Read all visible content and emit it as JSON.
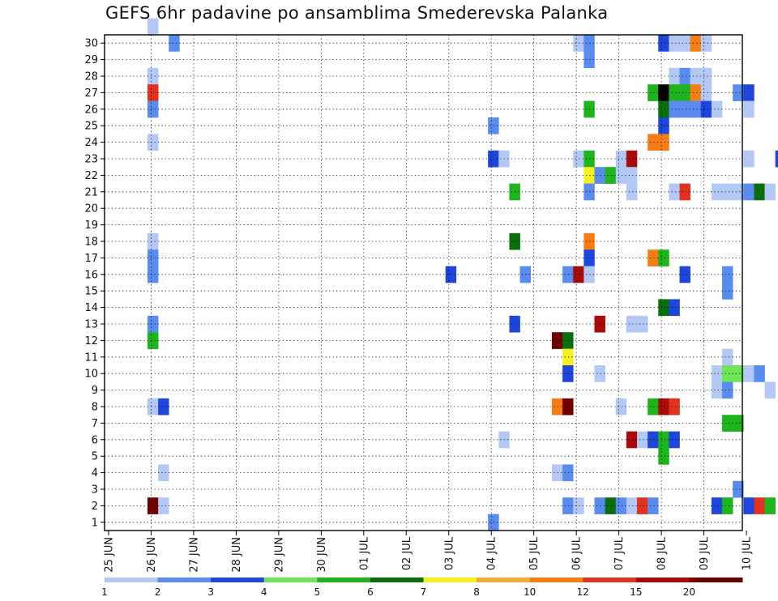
{
  "chart_data": {
    "type": "heatmap",
    "title": "GEFS 6hr padavine po ansamblima Smederevska Palanka",
    "x_tick_labels": [
      "25 JUN",
      "26 JUN",
      "27 JUN",
      "28 JUN",
      "29 JUN",
      "30 JUN",
      "01 JUL",
      "02 JUL",
      "03 JUL",
      "04 JUL",
      "05 JUL",
      "06 JUL",
      "07 JUL",
      "08 JUL",
      "09 JUL",
      "10 JUL"
    ],
    "y_tick_labels": [
      "1",
      "2",
      "3",
      "4",
      "5",
      "6",
      "7",
      "8",
      "9",
      "10",
      "11",
      "12",
      "13",
      "14",
      "15",
      "16",
      "17",
      "18",
      "19",
      "20",
      "21",
      "22",
      "23",
      "24",
      "25",
      "26",
      "27",
      "28",
      "29",
      "30"
    ],
    "x_step_hours": 6,
    "grid": true,
    "legend": {
      "position": "bottom",
      "labels": [
        "1",
        "2",
        "3",
        "4",
        "5",
        "6",
        "7",
        "8",
        "10",
        "12",
        "15",
        "20"
      ],
      "colors": [
        "#b4c8f5",
        "#5a8cf0",
        "#1e46dc",
        "#6ee65a",
        "#1eb41e",
        "#0a6e0a",
        "#f5f01e",
        "#f5aa37",
        "#f57d14",
        "#e1321e",
        "#aa0a0a",
        "#6e0000"
      ]
    },
    "cells": [
      [
        30,
        4,
        1
      ],
      [
        30,
        69,
        3
      ],
      [
        29,
        6,
        2
      ],
      [
        29,
        44,
        1
      ],
      [
        29,
        45,
        2
      ],
      [
        29,
        52,
        3
      ],
      [
        29,
        53,
        1
      ],
      [
        29,
        54,
        1
      ],
      [
        29,
        55,
        9
      ],
      [
        29,
        56,
        1
      ],
      [
        29,
        87,
        3
      ],
      [
        29,
        89,
        10
      ],
      [
        29,
        90,
        2
      ],
      [
        28,
        45,
        2
      ],
      [
        28,
        67,
        9
      ],
      [
        28,
        68,
        9
      ],
      [
        28,
        69,
        2
      ],
      [
        28,
        71,
        2
      ],
      [
        28,
        72,
        5
      ],
      [
        27,
        4,
        1
      ],
      [
        27,
        53,
        1
      ],
      [
        27,
        54,
        2
      ],
      [
        27,
        55,
        1
      ],
      [
        27,
        56,
        1
      ],
      [
        27,
        66,
        2
      ],
      [
        27,
        70,
        2
      ],
      [
        27,
        73,
        3
      ],
      [
        26,
        4,
        10
      ],
      [
        26,
        51,
        5
      ],
      [
        26,
        52,
        13
      ],
      [
        26,
        53,
        5
      ],
      [
        26,
        54,
        5
      ],
      [
        26,
        55,
        9
      ],
      [
        26,
        56,
        1
      ],
      [
        26,
        59,
        2
      ],
      [
        26,
        60,
        3
      ],
      [
        26,
        72,
        1
      ],
      [
        26,
        76,
        10
      ],
      [
        26,
        77,
        5
      ],
      [
        26,
        80,
        1
      ],
      [
        26,
        82,
        2
      ],
      [
        26,
        83,
        6
      ],
      [
        26,
        84,
        2
      ],
      [
        25,
        4,
        2
      ],
      [
        25,
        45,
        5
      ],
      [
        25,
        52,
        6
      ],
      [
        25,
        53,
        2
      ],
      [
        25,
        54,
        2
      ],
      [
        25,
        55,
        2
      ],
      [
        25,
        56,
        3
      ],
      [
        25,
        57,
        1
      ],
      [
        25,
        60,
        1
      ],
      [
        24,
        36,
        2
      ],
      [
        24,
        52,
        3
      ],
      [
        24,
        85,
        2
      ],
      [
        24,
        87,
        1
      ],
      [
        23,
        4,
        1
      ],
      [
        23,
        51,
        9
      ],
      [
        23,
        52,
        9
      ],
      [
        23,
        77,
        1
      ],
      [
        23,
        78,
        1
      ],
      [
        23,
        85,
        2
      ],
      [
        22,
        36,
        3
      ],
      [
        22,
        37,
        1
      ],
      [
        22,
        44,
        1
      ],
      [
        22,
        45,
        5
      ],
      [
        22,
        48,
        1
      ],
      [
        22,
        49,
        11
      ],
      [
        22,
        60,
        1
      ],
      [
        22,
        63,
        3
      ],
      [
        22,
        64,
        1
      ],
      [
        22,
        65,
        5
      ],
      [
        22,
        68,
        1
      ],
      [
        21,
        45,
        7
      ],
      [
        21,
        46,
        2
      ],
      [
        21,
        47,
        5
      ],
      [
        21,
        48,
        1
      ],
      [
        21,
        49,
        1
      ],
      [
        20,
        38,
        5
      ],
      [
        20,
        45,
        2
      ],
      [
        20,
        49,
        1
      ],
      [
        20,
        53,
        1
      ],
      [
        20,
        54,
        10
      ],
      [
        20,
        57,
        1
      ],
      [
        20,
        58,
        1
      ],
      [
        20,
        59,
        1
      ],
      [
        20,
        60,
        2
      ],
      [
        20,
        61,
        6
      ],
      [
        20,
        62,
        1
      ],
      [
        20,
        64,
        2
      ],
      [
        20,
        84,
        1
      ],
      [
        20,
        85,
        1
      ],
      [
        20,
        88,
        1
      ],
      [
        20,
        89,
        9
      ],
      [
        19,
        88,
        3
      ],
      [
        19,
        89,
        5
      ],
      [
        19,
        90,
        6
      ],
      [
        17,
        4,
        1
      ],
      [
        17,
        38,
        6
      ],
      [
        17,
        45,
        9
      ],
      [
        17,
        84,
        6
      ],
      [
        17,
        89,
        1
      ],
      [
        17,
        90,
        11
      ],
      [
        16,
        4,
        2
      ],
      [
        16,
        45,
        3
      ],
      [
        16,
        51,
        9
      ],
      [
        16,
        52,
        5
      ],
      [
        16,
        67,
        1
      ],
      [
        16,
        68,
        3
      ],
      [
        16,
        69,
        2
      ],
      [
        16,
        70,
        3
      ],
      [
        16,
        71,
        1
      ],
      [
        16,
        72,
        1
      ],
      [
        16,
        75,
        1
      ],
      [
        16,
        76,
        1
      ],
      [
        16,
        79,
        1
      ],
      [
        16,
        80,
        1
      ],
      [
        16,
        82,
        1
      ],
      [
        16,
        83,
        2
      ],
      [
        15,
        4,
        2
      ],
      [
        15,
        32,
        3
      ],
      [
        15,
        39,
        2
      ],
      [
        15,
        43,
        2
      ],
      [
        15,
        44,
        11
      ],
      [
        15,
        45,
        1
      ],
      [
        15,
        54,
        3
      ],
      [
        15,
        58,
        2
      ],
      [
        15,
        68,
        3
      ],
      [
        15,
        71,
        1
      ],
      [
        15,
        83,
        2
      ],
      [
        15,
        84,
        1
      ],
      [
        14,
        58,
        2
      ],
      [
        13,
        52,
        6
      ],
      [
        13,
        53,
        3
      ],
      [
        12,
        4,
        2
      ],
      [
        12,
        38,
        3
      ],
      [
        12,
        46,
        11
      ],
      [
        12,
        49,
        1
      ],
      [
        12,
        50,
        1
      ],
      [
        12,
        78,
        2
      ],
      [
        12,
        80,
        1
      ],
      [
        11,
        4,
        5
      ],
      [
        11,
        42,
        12
      ],
      [
        11,
        43,
        6
      ],
      [
        10,
        43,
        7
      ],
      [
        10,
        58,
        1
      ],
      [
        9,
        43,
        3
      ],
      [
        9,
        46,
        1
      ],
      [
        9,
        57,
        1
      ],
      [
        9,
        58,
        4
      ],
      [
        9,
        59,
        4
      ],
      [
        9,
        60,
        1
      ],
      [
        9,
        61,
        2
      ],
      [
        9,
        71,
        2
      ],
      [
        9,
        72,
        1
      ],
      [
        8,
        57,
        1
      ],
      [
        8,
        58,
        2
      ],
      [
        8,
        62,
        1
      ],
      [
        8,
        65,
        2
      ],
      [
        8,
        74,
        2
      ],
      [
        8,
        75,
        6
      ],
      [
        8,
        76,
        2
      ],
      [
        8,
        79,
        2
      ],
      [
        7,
        4,
        1
      ],
      [
        7,
        5,
        3
      ],
      [
        7,
        42,
        9
      ],
      [
        7,
        43,
        12
      ],
      [
        7,
        48,
        1
      ],
      [
        7,
        51,
        5
      ],
      [
        7,
        52,
        11
      ],
      [
        7,
        53,
        10
      ],
      [
        7,
        77,
        2
      ],
      [
        6,
        58,
        5
      ],
      [
        6,
        59,
        5
      ],
      [
        5,
        37,
        1
      ],
      [
        5,
        49,
        11
      ],
      [
        5,
        50,
        1
      ],
      [
        5,
        51,
        3
      ],
      [
        5,
        52,
        5
      ],
      [
        5,
        53,
        3
      ],
      [
        5,
        76,
        5
      ],
      [
        5,
        77,
        5
      ],
      [
        4,
        52,
        5
      ],
      [
        4,
        77,
        5
      ],
      [
        4,
        83,
        5
      ],
      [
        3,
        5,
        1
      ],
      [
        3,
        42,
        1
      ],
      [
        3,
        43,
        2
      ],
      [
        3,
        77,
        1
      ],
      [
        3,
        80,
        2
      ],
      [
        3,
        81,
        3
      ],
      [
        3,
        82,
        6
      ],
      [
        2,
        59,
        2
      ],
      [
        2,
        73,
        2
      ],
      [
        2,
        86,
        3
      ],
      [
        2,
        87,
        5
      ],
      [
        1,
        4,
        12
      ],
      [
        1,
        5,
        1
      ],
      [
        1,
        43,
        2
      ],
      [
        1,
        44,
        1
      ],
      [
        1,
        46,
        2
      ],
      [
        1,
        47,
        6
      ],
      [
        1,
        48,
        2
      ],
      [
        1,
        49,
        1
      ],
      [
        1,
        50,
        10
      ],
      [
        1,
        51,
        2
      ],
      [
        1,
        57,
        3
      ],
      [
        1,
        58,
        5
      ],
      [
        1,
        60,
        3
      ],
      [
        1,
        61,
        10
      ],
      [
        1,
        62,
        5
      ],
      [
        1,
        65,
        5
      ],
      [
        1,
        66,
        1
      ],
      [
        1,
        67,
        1
      ],
      [
        1,
        73,
        5
      ],
      [
        0,
        36,
        2
      ],
      [
        0,
        71,
        5
      ],
      [
        0,
        90,
        5
      ]
    ]
  }
}
